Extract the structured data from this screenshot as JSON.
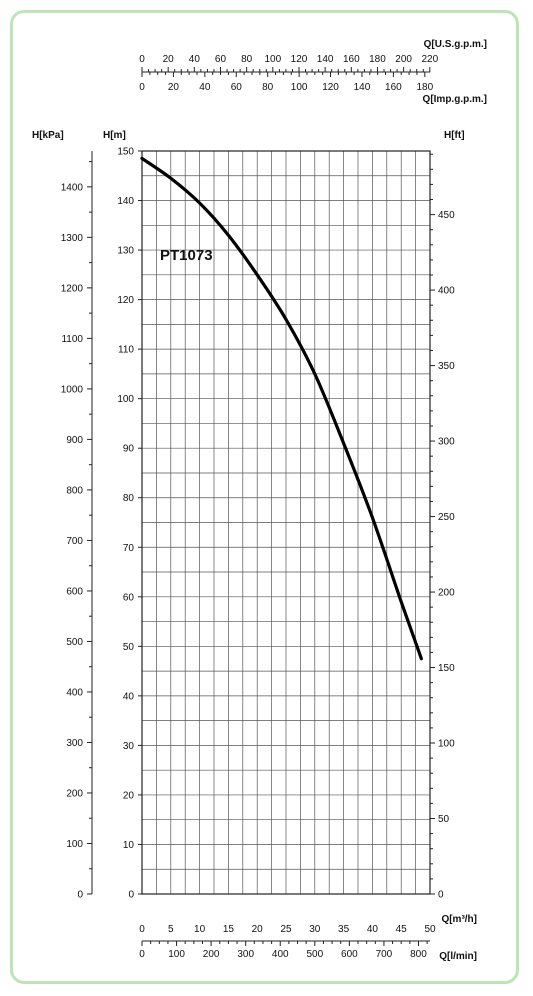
{
  "chart_data": {
    "type": "line",
    "title": "",
    "series": [
      {
        "name": "PT1073",
        "x": [
          0,
          5,
          10,
          15,
          20,
          25,
          30,
          35,
          40,
          45,
          48.5
        ],
        "values": [
          148.5,
          144.5,
          139.5,
          133,
          125,
          116,
          105,
          91,
          76,
          59,
          47.5
        ]
      }
    ],
    "xlabel": "Q[m³/h]",
    "ylabel": "H[m]",
    "xlim": [
      0,
      50
    ],
    "ylim": [
      0,
      150
    ],
    "grid": true,
    "line_color": "#000000",
    "frame_color": "#bfe3b7",
    "axes": {
      "q_m3h": {
        "label": "Q[m³/h]",
        "ticks": [
          "0",
          "5",
          "10",
          "15",
          "20",
          "25",
          "30",
          "35",
          "40",
          "45",
          "50"
        ],
        "range": [
          0,
          50
        ]
      },
      "q_lmin": {
        "label": "Q[l/min]",
        "ticks": [
          "0",
          "100",
          "200",
          "300",
          "400",
          "500",
          "600",
          "700",
          "800"
        ],
        "range": [
          0,
          833.33
        ]
      },
      "q_usgpm": {
        "label": "Q[U.S.g.p.m.]",
        "ticks": [
          "0",
          "20",
          "40",
          "60",
          "80",
          "100",
          "120",
          "140",
          "160",
          "180",
          "200",
          "220"
        ],
        "range": [
          0,
          220.15
        ]
      },
      "q_impgpm": {
        "label": "Q[Imp.g.p.m.]",
        "ticks": [
          "0",
          "20",
          "40",
          "60",
          "80",
          "100",
          "120",
          "140",
          "160",
          "180"
        ],
        "range": [
          0,
          183.33
        ]
      },
      "h_m": {
        "label": "H[m]",
        "ticks": [
          "0",
          "10",
          "20",
          "30",
          "40",
          "50",
          "60",
          "70",
          "80",
          "90",
          "100",
          "110",
          "120",
          "130",
          "140",
          "150"
        ],
        "range": [
          0,
          150
        ]
      },
      "h_kpa": {
        "label": "H[kPa]",
        "ticks": [
          "0",
          "100",
          "200",
          "300",
          "400",
          "500",
          "600",
          "700",
          "800",
          "900",
          "1000",
          "1100",
          "1200",
          "1300",
          "1400"
        ],
        "range": [
          0,
          1471
        ]
      },
      "h_ft": {
        "label": "H[ft]",
        "ticks": [
          "0",
          "50",
          "100",
          "150",
          "200",
          "250",
          "300",
          "350",
          "400",
          "450"
        ],
        "range": [
          0,
          492.1
        ]
      }
    }
  }
}
